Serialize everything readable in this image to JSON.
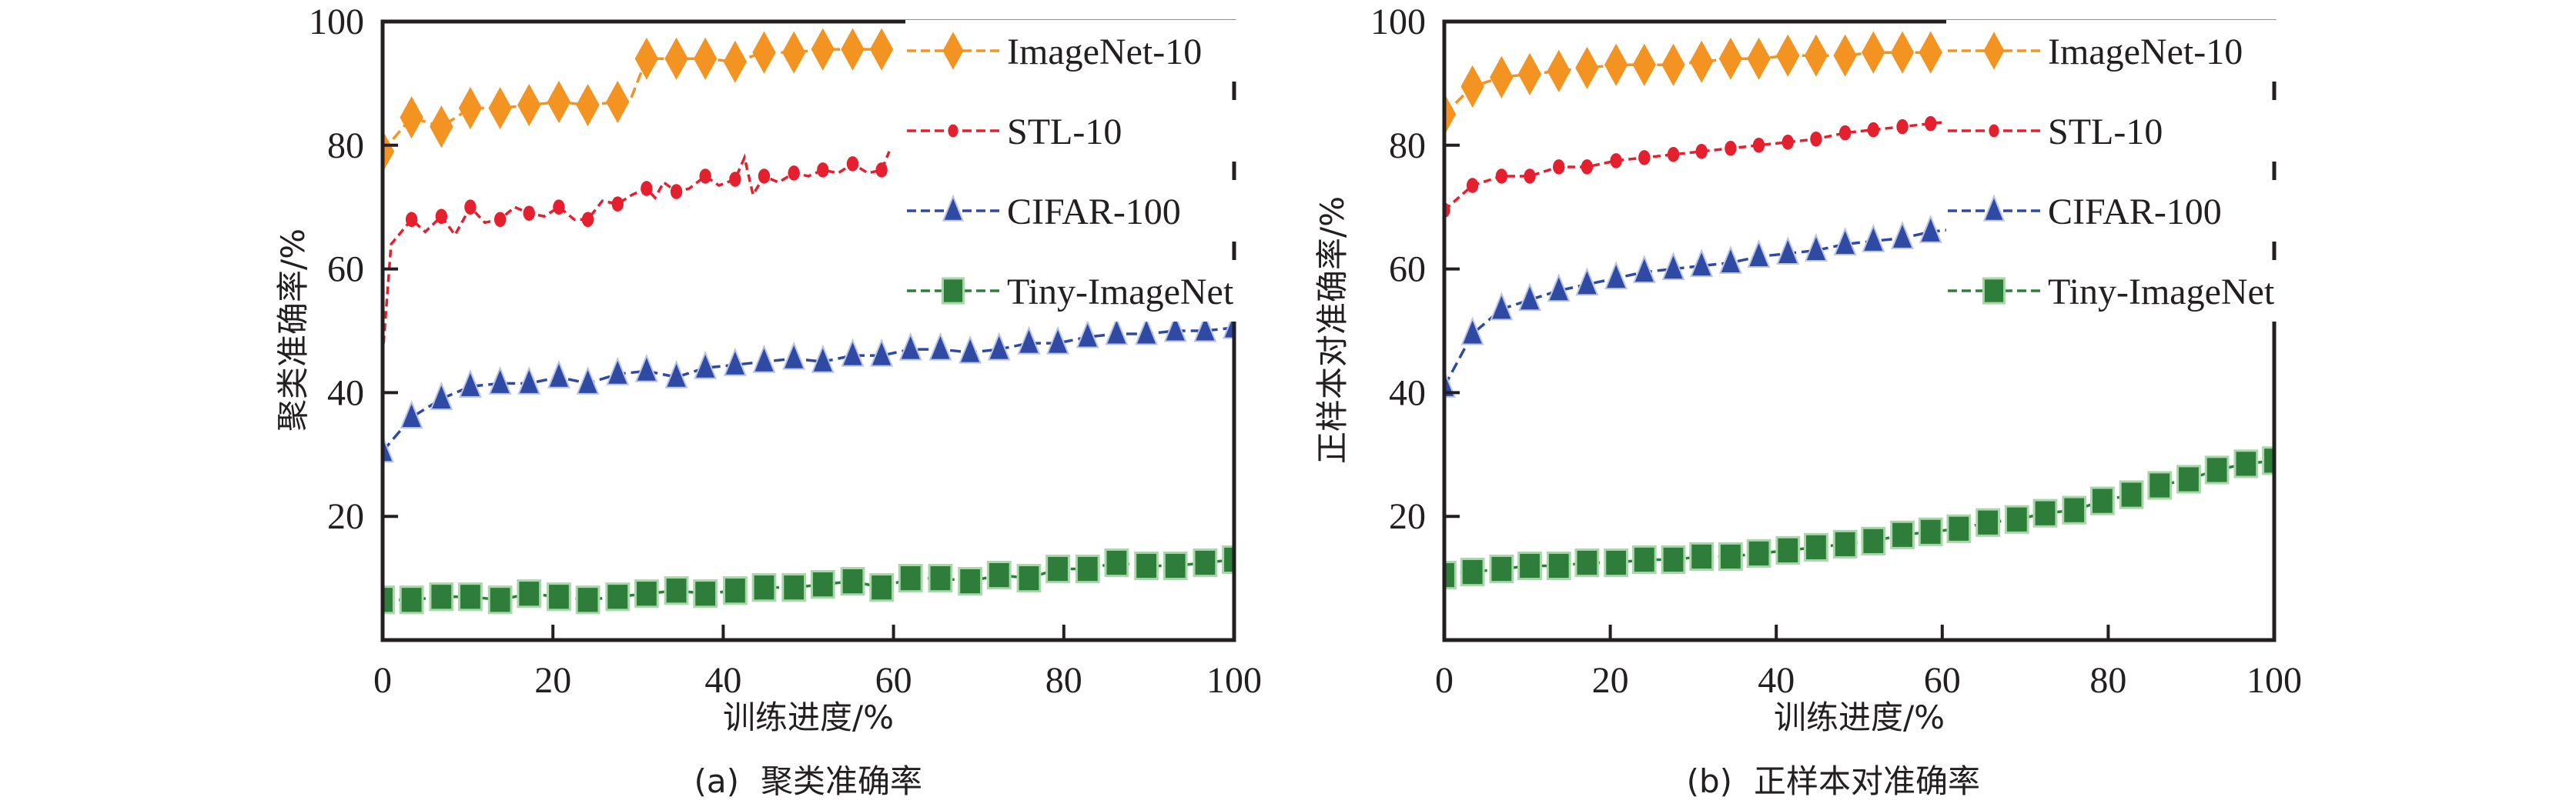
{
  "colors": {
    "ImageNet-10": "#f39322",
    "STL-10": "#e5202e",
    "CIFAR-100": "#2e4aa3",
    "Tiny-ImageNet": "#2e7d3a",
    "axis": "#231f20"
  },
  "chart_data": [
    {
      "id": "a",
      "type": "line",
      "caption_prefix": "(a)",
      "caption": "聚类准确率",
      "xlabel": "训练进度/%",
      "ylabel": "聚类准确率/%",
      "xlim": [
        0,
        100
      ],
      "ylim": [
        0,
        100
      ],
      "xticks": [
        0,
        20,
        40,
        60,
        80,
        100
      ],
      "yticks": [
        20,
        40,
        60,
        80,
        100
      ],
      "grid": false,
      "legend": "top-right",
      "series": [
        {
          "name": "ImageNet-10",
          "marker": "diamond",
          "x": [
            0,
            3.4,
            6.9,
            10.3,
            13.8,
            17.2,
            20.7,
            24.1,
            27.6,
            29,
            31,
            34.5,
            37.9,
            41.4,
            44.8,
            48.3,
            51.7,
            55.2,
            58.6,
            59
          ],
          "y": [
            79,
            84.5,
            83,
            86,
            86,
            86.5,
            87,
            86.5,
            87,
            87,
            94,
            94,
            94,
            93.5,
            95,
            95,
            95.5,
            95.5,
            95.5,
            95.5
          ],
          "markers_x": [
            0,
            3.4,
            6.9,
            10.3,
            13.8,
            17.2,
            20.7,
            24.1,
            27.6,
            31,
            34.5,
            37.9,
            41.4,
            44.8,
            48.3,
            51.7,
            55.2,
            58.6
          ]
        },
        {
          "name": "STL-10",
          "marker": "circle",
          "x": [
            0,
            1,
            3.4,
            5,
            6.9,
            8.5,
            10.3,
            12,
            13.8,
            15.5,
            17.2,
            19,
            20.7,
            22.5,
            24.1,
            25.8,
            27.6,
            29.3,
            31,
            32,
            33,
            34.5,
            36,
            37.9,
            39.5,
            41.4,
            42.5,
            43.5,
            44.8,
            46.5,
            48.3,
            50,
            51.7,
            53.5,
            55.2,
            57,
            58.6,
            59.5
          ],
          "y": [
            46,
            64,
            68,
            66,
            68.5,
            65.5,
            70,
            67.5,
            68,
            70,
            69,
            68.5,
            70,
            68,
            68,
            71,
            70.5,
            72,
            73,
            71.5,
            74,
            72.5,
            73,
            75,
            73.5,
            74.5,
            78,
            72,
            75,
            74,
            75.5,
            75,
            76,
            75.5,
            77,
            75.5,
            76,
            79
          ],
          "markers_x": [
            3.4,
            6.9,
            10.3,
            13.8,
            17.2,
            20.7,
            24.1,
            27.6,
            31,
            34.5,
            37.9,
            41.4,
            44.8,
            48.3,
            51.7,
            55.2,
            58.6
          ]
        },
        {
          "name": "CIFAR-100",
          "marker": "triangle",
          "x": [
            0,
            3.4,
            6.9,
            10.3,
            13.8,
            17.2,
            20.7,
            24.1,
            27.6,
            31,
            34.5,
            37.9,
            41.4,
            44.8,
            48.3,
            51.7,
            55.2,
            58.6,
            62,
            65.5,
            69,
            72.4,
            75.9,
            79.3,
            82.8,
            86.2,
            89.7,
            93.1,
            96.6,
            100
          ],
          "y": [
            30.5,
            36,
            39,
            41,
            41.5,
            41.5,
            42.5,
            41.5,
            43,
            43.5,
            42.5,
            44,
            44.5,
            45,
            45.5,
            45,
            46,
            46,
            47,
            47,
            46.5,
            47,
            48,
            48,
            49,
            49.5,
            49.5,
            50,
            50,
            50.5
          ]
        },
        {
          "name": "Tiny-ImageNet",
          "marker": "square",
          "x": [
            0,
            3.4,
            6.9,
            10.3,
            13.8,
            17.2,
            20.7,
            24.1,
            27.6,
            31,
            34.5,
            37.9,
            41.4,
            44.8,
            48.3,
            51.7,
            55.2,
            58.6,
            62,
            65.5,
            69,
            72.4,
            75.9,
            79.3,
            82.8,
            86.2,
            89.7,
            93.1,
            96.6,
            100
          ],
          "y": [
            6.5,
            6.5,
            7,
            7,
            6.5,
            7.5,
            7,
            6.5,
            7,
            7.5,
            8,
            7.5,
            8,
            8.5,
            8.5,
            9,
            9.5,
            8.5,
            10,
            10,
            9.5,
            10.5,
            10,
            11.5,
            11.5,
            12.5,
            12,
            12,
            12.5,
            13
          ]
        }
      ]
    },
    {
      "id": "b",
      "type": "line",
      "caption_prefix": "(b)",
      "caption": "正样本对准确率",
      "xlabel": "训练进度/%",
      "ylabel": "正样本对准确率/%",
      "xlim": [
        0,
        100
      ],
      "ylim": [
        0,
        100
      ],
      "xticks": [
        0,
        20,
        40,
        60,
        80,
        100
      ],
      "yticks": [
        20,
        40,
        60,
        80,
        100
      ],
      "grid": false,
      "legend": "top-right",
      "series": [
        {
          "name": "ImageNet-10",
          "marker": "diamond",
          "x": [
            0,
            3.4,
            6.9,
            10.3,
            13.8,
            17.2,
            20.7,
            24.1,
            27.6,
            31,
            34.5,
            37.9,
            41.4,
            44.8,
            48.3,
            51.7,
            55.2,
            58.6,
            62
          ],
          "y": [
            85,
            89.5,
            91,
            91.5,
            92,
            92.5,
            93,
            93,
            93,
            93.5,
            94,
            94,
            94.5,
            94.5,
            94.5,
            95,
            95,
            95,
            95
          ]
        },
        {
          "name": "STL-10",
          "marker": "circle",
          "x": [
            0,
            3.4,
            6.9,
            10.3,
            13.8,
            17.2,
            20.7,
            24.1,
            27.6,
            31,
            34.5,
            37.9,
            41.4,
            44.8,
            48.3,
            51.7,
            55.2,
            58.6,
            62
          ],
          "y": [
            69.5,
            73.5,
            75,
            75,
            76.5,
            76.5,
            77.5,
            78,
            78.5,
            79,
            79.5,
            80,
            80.5,
            81,
            82,
            82.5,
            83,
            83.5,
            84
          ]
        },
        {
          "name": "CIFAR-100",
          "marker": "triangle",
          "x": [
            0,
            3.4,
            6.9,
            10.3,
            13.8,
            17.2,
            20.7,
            24.1,
            27.6,
            31,
            34.5,
            37.9,
            41.4,
            44.8,
            48.3,
            51.7,
            55.2,
            58.6,
            62,
            65.5,
            68
          ],
          "y": [
            41,
            49.5,
            53.5,
            55,
            56.5,
            57.5,
            58.5,
            59.5,
            60,
            60.5,
            61,
            62,
            62.5,
            63,
            64,
            64.5,
            65,
            66,
            66.5,
            67,
            67
          ]
        },
        {
          "name": "Tiny-ImageNet",
          "marker": "square",
          "x": [
            0,
            3.4,
            6.9,
            10.3,
            13.8,
            17.2,
            20.7,
            24.1,
            27.6,
            31,
            34.5,
            37.9,
            41.4,
            44.8,
            48.3,
            51.7,
            55.2,
            58.6,
            62,
            65.5,
            69,
            72.4,
            75.9,
            79.3,
            82.8,
            86.2,
            89.7,
            93.1,
            96.6,
            100
          ],
          "y": [
            10.5,
            11,
            11.5,
            12,
            12,
            12.5,
            12.5,
            13,
            13,
            13.5,
            13.5,
            14,
            14.5,
            15,
            15.5,
            16,
            17,
            17.5,
            18,
            19,
            19.5,
            20.5,
            21,
            22.5,
            23.5,
            25,
            26,
            27.5,
            28.5,
            29
          ]
        }
      ]
    }
  ]
}
